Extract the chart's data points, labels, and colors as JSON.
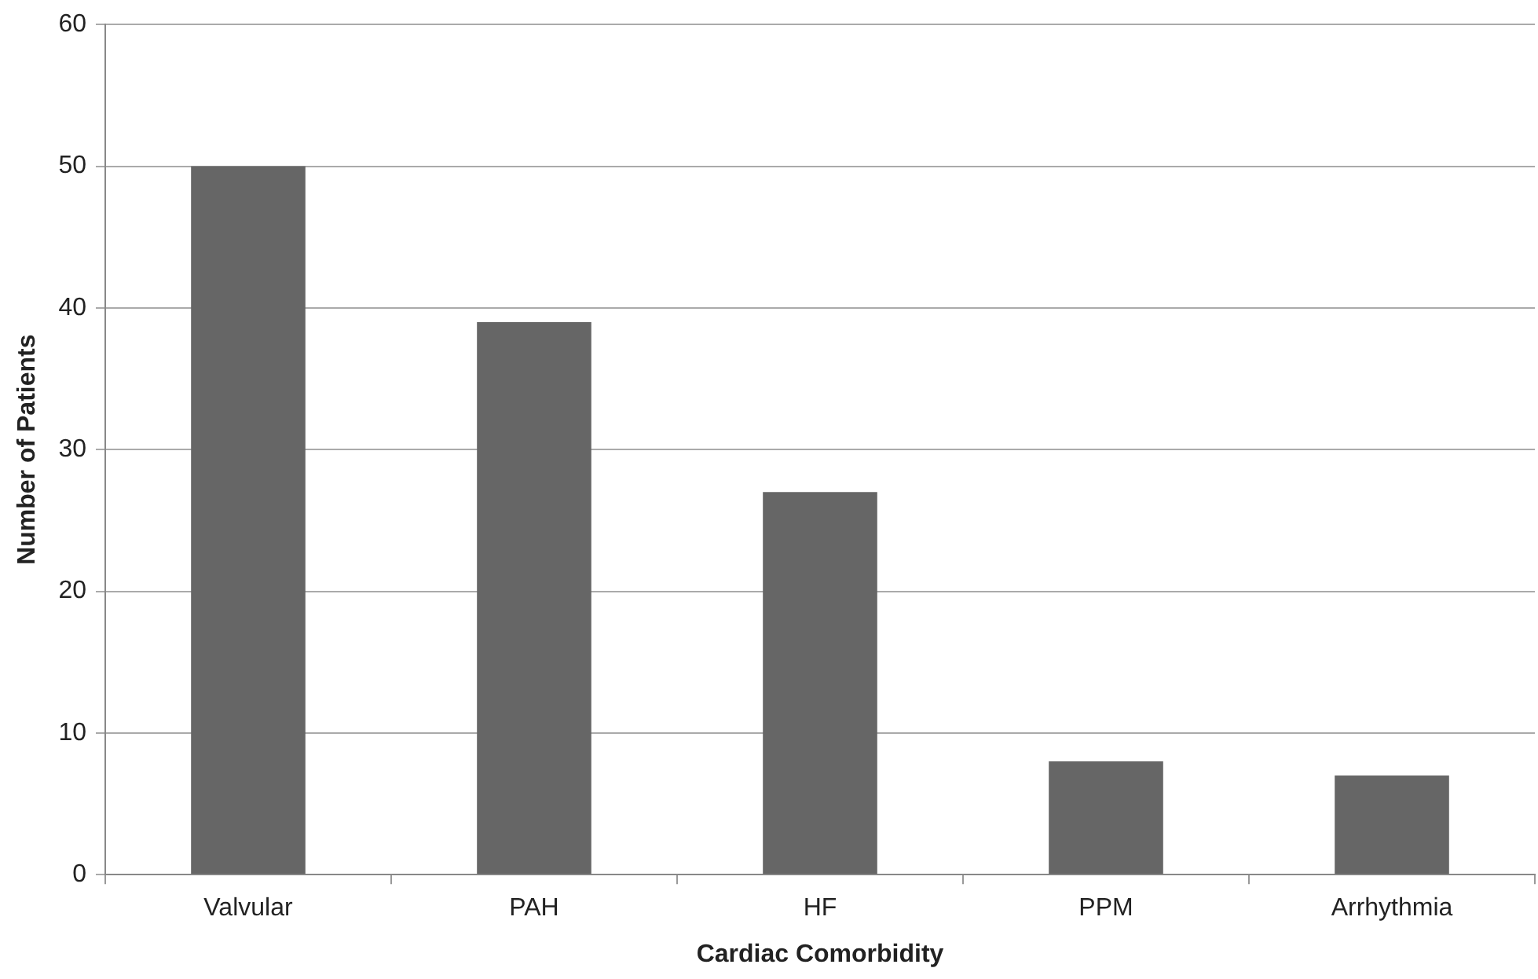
{
  "chart_data": {
    "type": "bar",
    "xlabel": "Cardiac Comorbidity",
    "ylabel": "Number of Patients",
    "categories": [
      "Valvular",
      "PAH",
      "HF",
      "PPM",
      "Arrhythmia"
    ],
    "values": [
      50,
      39,
      27,
      8,
      7
    ],
    "color": "#666666",
    "ylim": [
      0,
      60
    ],
    "yticks": [
      0,
      10,
      20,
      30,
      40,
      50,
      60
    ],
    "grid": "y"
  }
}
